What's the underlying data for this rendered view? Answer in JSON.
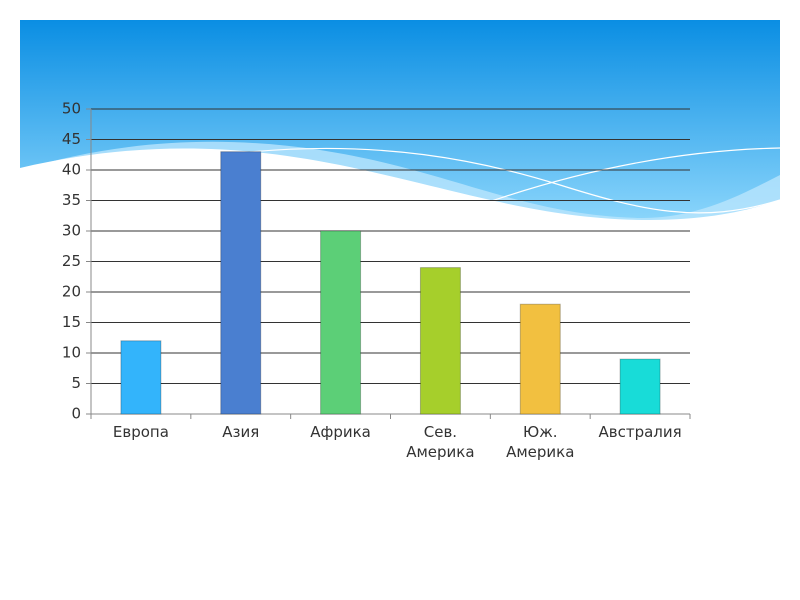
{
  "chart_data": {
    "type": "bar",
    "categories": [
      "Европа",
      "Азия",
      "Африка",
      "Сев. Америка",
      "Юж. Америка",
      "Австралия"
    ],
    "values": [
      12,
      43,
      30,
      24,
      18,
      9
    ],
    "colors": [
      "#33b4fb",
      "#4a7fd0",
      "#5ccf77",
      "#a6cf2b",
      "#f2c040",
      "#18dcd8"
    ],
    "ylim": [
      0,
      50
    ],
    "yticks": [
      0,
      5,
      10,
      15,
      20,
      25,
      30,
      35,
      40,
      45,
      50
    ],
    "grid": true
  }
}
